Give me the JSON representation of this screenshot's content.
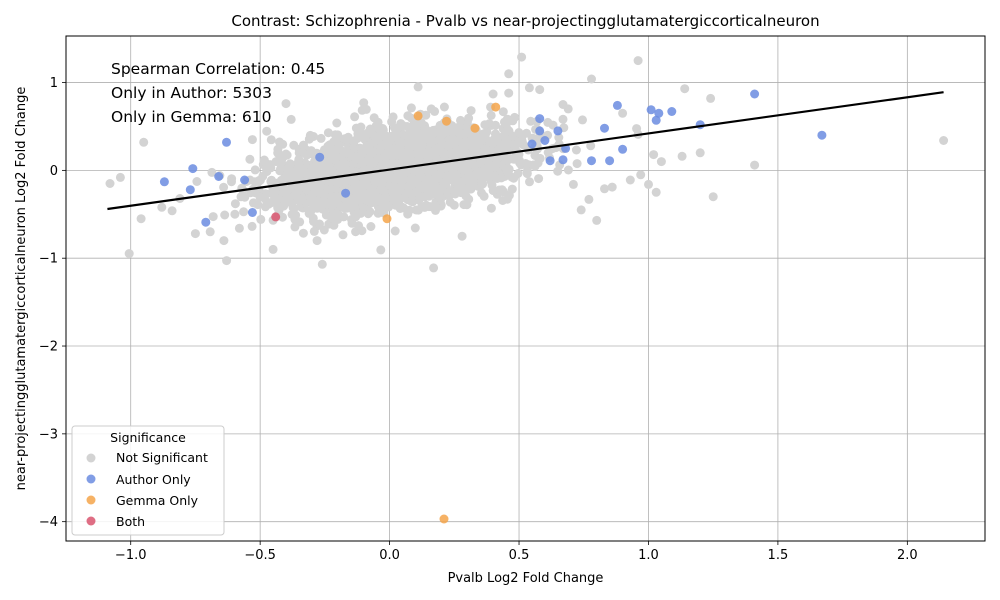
{
  "chart_data": {
    "type": "scatter",
    "title": "Contrast: Schizophrenia - Pvalb vs near-projectingglutamatergiccorticalneuron",
    "xlabel": "Pvalb Log2 Fold Change",
    "ylabel": "near-projectingglutamatergiccorticalneuron Log2 Fold Change",
    "xlim": [
      -1.25,
      2.3
    ],
    "ylim": [
      -4.22,
      1.53
    ],
    "xticks": [
      -1.0,
      -0.5,
      0.0,
      0.5,
      1.0,
      1.5,
      2.0
    ],
    "xtick_labels": [
      "−1.0",
      "−0.5",
      "0.0",
      "0.5",
      "1.0",
      "1.5",
      "2.0"
    ],
    "yticks": [
      -4,
      -3,
      -2,
      -1,
      0,
      1
    ],
    "ytick_labels": [
      "−4",
      "−3",
      "−2",
      "−1",
      "0",
      "1"
    ],
    "grid": true,
    "annotations": [
      "Spearman Correlation: 0.45",
      "Only in Author: 5303",
      "Only in Gemma: 610"
    ],
    "legend": {
      "title": "Significance",
      "placement": "lower-left",
      "entries": [
        "Not Significant",
        "Author Only",
        "Gemma Only",
        "Both"
      ]
    },
    "colors": {
      "not_significant": "#d3d3d3",
      "author_only": "#6b8ce0",
      "gemma_only": "#f5a54a",
      "both": "#d9556e",
      "fit_line": "#000000"
    },
    "fit_line": {
      "x": [
        -1.09,
        2.14
      ],
      "y": [
        -0.44,
        0.89
      ]
    },
    "series": [
      {
        "name": "Author Only",
        "x": [
          1.41,
          1.67,
          1.2,
          1.09,
          1.04,
          1.03,
          1.01,
          0.88,
          0.83,
          0.9,
          0.85,
          0.78,
          0.67,
          0.68,
          0.65,
          0.62,
          0.6,
          0.58,
          0.58,
          0.55,
          -0.63,
          -0.87,
          -0.76,
          -0.77,
          -0.66,
          -0.71,
          -0.56,
          -0.53,
          -0.27,
          -0.17
        ],
        "y": [
          0.87,
          0.4,
          0.52,
          0.67,
          0.65,
          0.57,
          0.69,
          0.74,
          0.48,
          0.24,
          0.11,
          0.11,
          0.12,
          0.25,
          0.45,
          0.11,
          0.34,
          0.59,
          0.45,
          0.3,
          0.32,
          -0.13,
          0.02,
          -0.22,
          -0.07,
          -0.59,
          -0.11,
          -0.48,
          0.15,
          -0.26
        ]
      },
      {
        "name": "Gemma Only",
        "x": [
          0.21,
          0.41,
          0.33,
          0.11,
          0.22,
          -0.01
        ],
        "y": [
          -3.97,
          0.72,
          0.48,
          0.62,
          0.56,
          -0.55
        ]
      },
      {
        "name": "Both",
        "x": [
          -0.44
        ],
        "y": [
          -0.53
        ]
      },
      {
        "name": "Not Significant",
        "x": [
          0.96,
          1.25,
          0.78,
          1.41,
          2.14,
          1.24,
          1.14,
          1.2,
          1.05,
          1.13,
          0.83,
          0.97,
          -1.08,
          -1.04,
          -0.96,
          -0.84,
          -0.81,
          -0.75,
          -0.88,
          -0.95,
          -0.64,
          -0.58,
          -0.45,
          -0.26,
          -0.28,
          -0.4,
          -0.38,
          0.17,
          0.28,
          0.11,
          0.51,
          0.46,
          0.4,
          0.54,
          0.71,
          0.74,
          0.77,
          0.8,
          0.86,
          0.93,
          1.0,
          1.03,
          1.02,
          0.96,
          0.9,
          0.69,
          -0.53,
          -0.1,
          0.39,
          0.46,
          0.58,
          0.67
        ],
        "y": [
          1.25,
          -0.3,
          1.04,
          0.06,
          0.34,
          0.82,
          0.93,
          0.2,
          0.1,
          0.16,
          -0.21,
          -0.05,
          -0.15,
          -0.08,
          -0.55,
          -0.46,
          -0.32,
          -0.72,
          -0.42,
          0.32,
          -0.8,
          -0.66,
          -0.9,
          -1.07,
          -0.8,
          0.76,
          0.58,
          -1.11,
          -0.75,
          0.95,
          1.29,
          1.1,
          0.87,
          0.94,
          -0.16,
          -0.45,
          -0.33,
          -0.57,
          -0.19,
          -0.11,
          -0.16,
          -0.25,
          0.18,
          0.41,
          0.65,
          0.7,
          0.35,
          0.77,
          0.72,
          0.88,
          0.92,
          0.75
        ]
      }
    ]
  }
}
